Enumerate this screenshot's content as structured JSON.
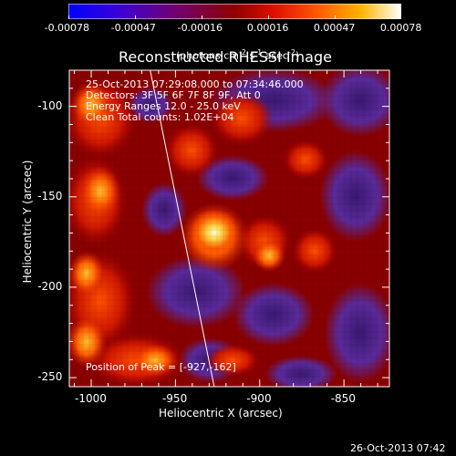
{
  "colorbar": {
    "tick_labels": [
      "-0.00078",
      "-0.00047",
      "-0.00016",
      "0.00016",
      "0.00047",
      "0.00078"
    ],
    "units_main": "(photons cm",
    "units_sup1": "-2",
    "units_mid": " s",
    "units_sup2": "-1",
    "units_end": " asec",
    "units_sup3": "-2",
    "units_close": ")"
  },
  "title": "Reconstructed RHESSI Image",
  "overlay": {
    "line1": "25-Oct-2013 07:29:08.000 to 07:34:46.000",
    "line2": "Detectors: 3F 5F 6F 7F 8F 9F, Att 0",
    "line3": "Energy Ranges 12.0 - 25.0 keV",
    "line4": "Clean    Total counts: 1.02E+04",
    "peak": "Position of Peak = [-927,-162]"
  },
  "footer_timestamp": "26-Oct-2013 07:42",
  "chart_data": {
    "type": "heatmap",
    "title": "Reconstructed RHESSI Image",
    "xlabel": "Heliocentric X (arcsec)",
    "ylabel": "Heliocentric Y (arcsec)",
    "xlim": [
      -1013,
      -823
    ],
    "ylim": [
      -255,
      -80
    ],
    "x_ticks": [
      -1000,
      -950,
      -900,
      -850
    ],
    "y_ticks": [
      -100,
      -150,
      -200,
      -250
    ],
    "x_tick_labels": [
      "-1000",
      "-950",
      "-900",
      "-850"
    ],
    "y_tick_labels": [
      "-100",
      "-150",
      "-200",
      "-250"
    ],
    "colorbar_range": [
      -0.00078,
      0.00078
    ],
    "peak_position": [
      -927,
      -162
    ],
    "limb_line": [
      [
        -965,
        -80
      ],
      [
        -927,
        -255
      ]
    ],
    "colors": {
      "negative_dark": "#2a0a4a",
      "negative": "#5a2a9a",
      "neutral": "#8a0000",
      "mid": "#ff3000",
      "high": "#ff9a00",
      "peak": "#ffffb0"
    }
  }
}
